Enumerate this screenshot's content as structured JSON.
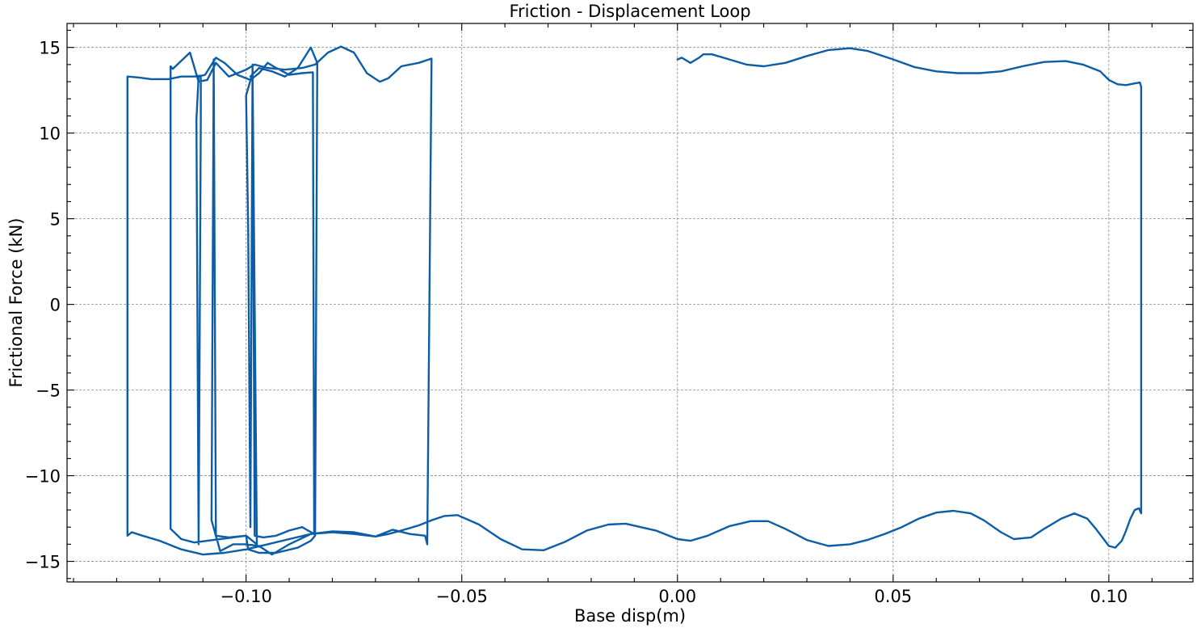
{
  "chart_data": {
    "type": "line",
    "title": "Friction - Displacement Loop",
    "xlabel": "Base disp(m)",
    "ylabel": "Frictional Force (kN)",
    "xlim": [
      -0.1415,
      0.1195
    ],
    "ylim": [
      -16.2,
      16.4
    ],
    "x_ticks": [
      -0.1,
      -0.05,
      0.0,
      0.05,
      0.1
    ],
    "x_tick_labels": [
      "−0.10",
      "−0.05",
      "0.00",
      "0.05",
      "0.10"
    ],
    "y_ticks": [
      -15,
      -10,
      -5,
      0,
      5,
      10,
      15
    ],
    "y_tick_labels": [
      "−15",
      "−10",
      "−5",
      "0",
      "5",
      "10",
      "15"
    ],
    "grid": true,
    "colors": {
      "series": "#0c5da5"
    },
    "series": [
      {
        "color": "#0c5da5",
        "points": [
          [
            0.0,
            14.3
          ],
          [
            0.001,
            14.4
          ],
          [
            0.003,
            14.1
          ],
          [
            0.005,
            14.4
          ],
          [
            0.006,
            14.6
          ],
          [
            0.008,
            14.6
          ],
          [
            0.012,
            14.3
          ],
          [
            0.016,
            14.0
          ],
          [
            0.02,
            13.9
          ],
          [
            0.025,
            14.1
          ],
          [
            0.03,
            14.5
          ],
          [
            0.035,
            14.85
          ],
          [
            0.04,
            14.95
          ],
          [
            0.044,
            14.8
          ],
          [
            0.05,
            14.3
          ],
          [
            0.055,
            13.85
          ],
          [
            0.06,
            13.6
          ],
          [
            0.065,
            13.5
          ],
          [
            0.07,
            13.5
          ],
          [
            0.075,
            13.6
          ],
          [
            0.08,
            13.9
          ],
          [
            0.085,
            14.15
          ],
          [
            0.09,
            14.2
          ],
          [
            0.094,
            14.0
          ],
          [
            0.098,
            13.6
          ],
          [
            0.1,
            13.1
          ],
          [
            0.102,
            12.85
          ],
          [
            0.104,
            12.8
          ],
          [
            0.106,
            12.9
          ],
          [
            0.1072,
            12.95
          ],
          [
            0.1075,
            12.7
          ],
          [
            0.1075,
            -12.2
          ],
          [
            0.107,
            -11.9
          ],
          [
            0.106,
            -12.0
          ],
          [
            0.105,
            -12.5
          ],
          [
            0.104,
            -13.2
          ],
          [
            0.103,
            -13.8
          ],
          [
            0.1015,
            -14.2
          ],
          [
            0.1,
            -14.1
          ],
          [
            0.097,
            -13.1
          ],
          [
            0.095,
            -12.5
          ],
          [
            0.092,
            -12.2
          ],
          [
            0.089,
            -12.5
          ],
          [
            0.085,
            -13.1
          ],
          [
            0.082,
            -13.6
          ],
          [
            0.078,
            -13.7
          ],
          [
            0.075,
            -13.3
          ],
          [
            0.071,
            -12.6
          ],
          [
            0.068,
            -12.2
          ],
          [
            0.064,
            -12.05
          ],
          [
            0.06,
            -12.15
          ],
          [
            0.056,
            -12.5
          ],
          [
            0.052,
            -13.0
          ],
          [
            0.048,
            -13.4
          ],
          [
            0.044,
            -13.75
          ],
          [
            0.04,
            -14.0
          ],
          [
            0.035,
            -14.1
          ],
          [
            0.03,
            -13.75
          ],
          [
            0.025,
            -13.1
          ],
          [
            0.021,
            -12.65
          ],
          [
            0.017,
            -12.65
          ],
          [
            0.012,
            -12.95
          ],
          [
            0.007,
            -13.5
          ],
          [
            0.003,
            -13.8
          ],
          [
            0.0,
            -13.7
          ],
          [
            -0.005,
            -13.2
          ],
          [
            -0.012,
            -12.8
          ],
          [
            -0.016,
            -12.85
          ],
          [
            -0.021,
            -13.2
          ],
          [
            -0.026,
            -13.85
          ],
          [
            -0.031,
            -14.35
          ],
          [
            -0.036,
            -14.3
          ],
          [
            -0.041,
            -13.7
          ],
          [
            -0.046,
            -12.85
          ],
          [
            -0.051,
            -12.3
          ],
          [
            -0.054,
            -12.35
          ],
          [
            -0.057,
            -12.6
          ],
          [
            -0.06,
            -12.9
          ],
          [
            -0.064,
            -13.2
          ],
          [
            -0.067,
            -13.4
          ],
          [
            -0.07,
            -13.55
          ],
          [
            -0.075,
            -13.4
          ],
          [
            -0.08,
            -13.3
          ],
          [
            -0.085,
            -13.4
          ],
          [
            -0.09,
            -13.7
          ],
          [
            -0.095,
            -14.0
          ],
          [
            -0.1,
            -14.3
          ],
          [
            -0.105,
            -14.5
          ],
          [
            -0.11,
            -14.6
          ],
          [
            -0.115,
            -14.3
          ],
          [
            -0.12,
            -13.8
          ],
          [
            -0.124,
            -13.5
          ],
          [
            -0.1265,
            -13.3
          ],
          [
            -0.1275,
            -13.5
          ],
          [
            -0.1275,
            13.3
          ],
          [
            -0.125,
            13.25
          ],
          [
            -0.122,
            13.15
          ],
          [
            -0.118,
            13.15
          ],
          [
            -0.115,
            13.3
          ],
          [
            -0.112,
            13.3
          ],
          [
            -0.1105,
            13.35
          ],
          [
            -0.1105,
            10.8
          ],
          [
            -0.111,
            -14.0
          ],
          [
            -0.1115,
            10.8
          ],
          [
            -0.111,
            13.3
          ],
          [
            -0.1095,
            13.4
          ],
          [
            -0.107,
            14.4
          ],
          [
            -0.105,
            14.1
          ],
          [
            -0.102,
            13.4
          ],
          [
            -0.099,
            13.1
          ],
          [
            -0.097,
            13.5
          ],
          [
            -0.095,
            14.1
          ],
          [
            -0.093,
            13.8
          ],
          [
            -0.09,
            13.4
          ],
          [
            -0.087,
            13.5
          ],
          [
            -0.0845,
            13.55
          ],
          [
            -0.0842,
            -13.4
          ],
          [
            -0.087,
            -13.0
          ],
          [
            -0.09,
            -13.2
          ],
          [
            -0.093,
            -13.5
          ],
          [
            -0.096,
            -13.6
          ],
          [
            -0.098,
            -13.5
          ],
          [
            -0.0985,
            14.0
          ],
          [
            -0.099,
            -13.0
          ],
          [
            -0.0995,
            4.3
          ],
          [
            -0.1,
            12.2
          ],
          [
            -0.0985,
            13.5
          ],
          [
            -0.0975,
            -14.0
          ],
          [
            -0.1,
            -13.5
          ],
          [
            -0.104,
            -13.6
          ],
          [
            -0.107,
            -13.5
          ],
          [
            -0.1075,
            14.3
          ],
          [
            -0.108,
            -12.6
          ],
          [
            -0.106,
            -14.4
          ],
          [
            -0.103,
            -14.0
          ],
          [
            -0.1,
            -14.0
          ],
          [
            -0.097,
            -14.1
          ],
          [
            -0.094,
            -14.6
          ],
          [
            -0.09,
            -14.0
          ],
          [
            -0.085,
            -13.4
          ],
          [
            -0.08,
            -13.25
          ],
          [
            -0.075,
            -13.3
          ],
          [
            -0.07,
            -13.55
          ],
          [
            -0.066,
            -13.15
          ],
          [
            -0.062,
            -13.4
          ],
          [
            -0.0585,
            -13.5
          ],
          [
            -0.058,
            -14.0
          ],
          [
            -0.057,
            14.35
          ],
          [
            -0.06,
            14.1
          ],
          [
            -0.064,
            13.9
          ],
          [
            -0.067,
            13.2
          ],
          [
            -0.069,
            13.0
          ],
          [
            -0.072,
            13.5
          ],
          [
            -0.075,
            14.7
          ],
          [
            -0.078,
            15.05
          ],
          [
            -0.081,
            14.7
          ],
          [
            -0.084,
            14.0
          ],
          [
            -0.087,
            13.8
          ],
          [
            -0.091,
            13.7
          ],
          [
            -0.095,
            13.8
          ],
          [
            -0.098,
            14.0
          ],
          [
            -0.1,
            13.7
          ],
          [
            -0.104,
            13.3
          ],
          [
            -0.107,
            14.1
          ],
          [
            -0.109,
            13.1
          ],
          [
            -0.111,
            13.0
          ],
          [
            -0.113,
            14.7
          ],
          [
            -0.117,
            13.75
          ],
          [
            -0.1175,
            13.9
          ],
          [
            -0.1175,
            -13.1
          ],
          [
            -0.115,
            -13.7
          ],
          [
            -0.112,
            -13.9
          ],
          [
            -0.109,
            -13.8
          ],
          [
            -0.106,
            -13.7
          ],
          [
            -0.1,
            -13.5
          ],
          [
            -0.0995,
            -14.3
          ],
          [
            -0.097,
            -14.5
          ],
          [
            -0.093,
            -14.5
          ],
          [
            -0.088,
            -14.2
          ],
          [
            -0.085,
            -13.8
          ],
          [
            -0.084,
            -13.5
          ],
          [
            -0.0835,
            14.1
          ],
          [
            -0.085,
            15.0
          ],
          [
            -0.088,
            13.8
          ],
          [
            -0.091,
            13.3
          ],
          [
            -0.094,
            13.6
          ],
          [
            -0.097,
            13.8
          ],
          [
            -0.099,
            13.3
          ]
        ]
      }
    ]
  }
}
